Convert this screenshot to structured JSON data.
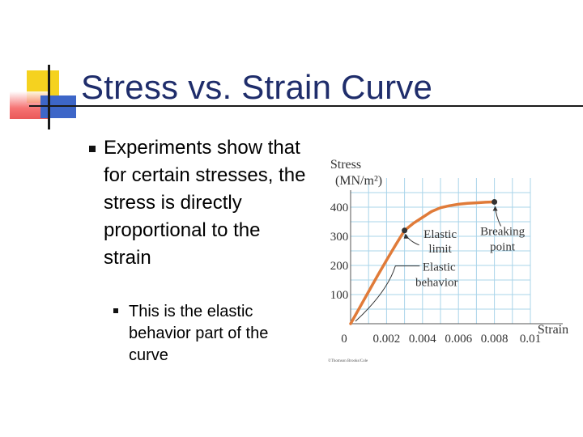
{
  "slide": {
    "title": "Stress vs. Strain Curve",
    "bullet_main": "Experiments show that for certain stresses, the stress is directly proportional to the strain",
    "bullet_sub": "This is the elastic behavior part of the curve"
  },
  "colors": {
    "title": "#1f2d6b",
    "curve": "#e07b39",
    "grid": "#a9d4ea",
    "deco_yellow": "#f5d21f",
    "deco_red": "#e63b3b",
    "deco_blue": "#3d66c8"
  },
  "chart_data": {
    "type": "line",
    "ylabel_line1": "Stress",
    "ylabel_line2": "(MN/m²)",
    "xlabel": "Strain",
    "xlim": [
      0,
      0.01
    ],
    "ylim": [
      0,
      500
    ],
    "x_ticks": [
      "0",
      "0.002",
      "0.004",
      "0.006",
      "0.008",
      "0.01"
    ],
    "x_tick_values": [
      0,
      0.002,
      0.004,
      0.006,
      0.008,
      0.01
    ],
    "y_ticks": [
      "100",
      "200",
      "300",
      "400"
    ],
    "y_tick_values": [
      100,
      200,
      300,
      400
    ],
    "grid": true,
    "series": [
      {
        "x": [
          0,
          0.0005,
          0.001,
          0.0015,
          0.002,
          0.0025,
          0.003,
          0.0035,
          0.004,
          0.0045,
          0.005,
          0.0055,
          0.006,
          0.0065,
          0.007,
          0.0075,
          0.008
        ],
        "values": [
          0,
          55,
          110,
          165,
          218,
          270,
          320,
          345,
          365,
          385,
          398,
          405,
          410,
          413,
          415,
          417,
          418
        ]
      }
    ],
    "annotations": [
      {
        "line1": "Elastic",
        "line2": "limit",
        "x": 0.003,
        "y": 320
      },
      {
        "line1": "Breaking",
        "line2": "point",
        "x": 0.008,
        "y": 418
      },
      {
        "line1": "Elastic",
        "line2": "behavior",
        "x": 0.0015,
        "y": 165
      }
    ],
    "credit": "©Thomson Brooks/Cole"
  }
}
